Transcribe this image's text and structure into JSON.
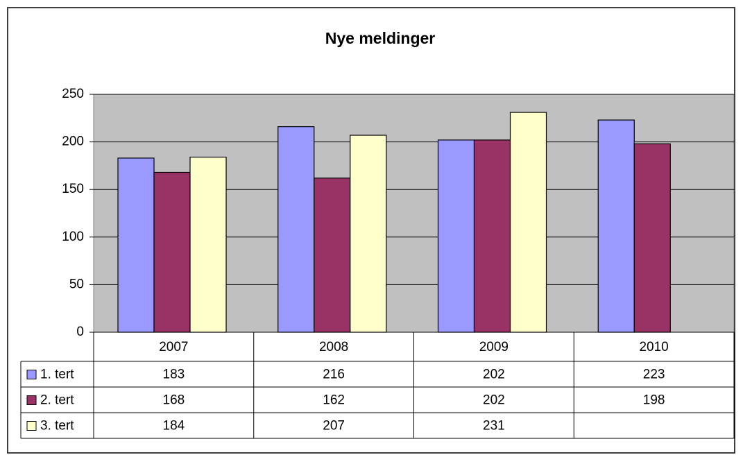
{
  "chart_data": {
    "type": "bar",
    "title": "Nye meldinger",
    "categories": [
      "2007",
      "2008",
      "2009",
      "2010"
    ],
    "series": [
      {
        "name": "1. tert",
        "color": "#9999ff",
        "values": [
          183,
          216,
          202,
          223
        ]
      },
      {
        "name": "2. tert",
        "color": "#993366",
        "values": [
          168,
          162,
          202,
          198
        ]
      },
      {
        "name": "3. tert",
        "color": "#ffffcc",
        "values": [
          184,
          207,
          231,
          null
        ]
      }
    ],
    "ylim": [
      0,
      250
    ],
    "yticks": [
      0,
      50,
      100,
      150,
      200,
      250
    ],
    "grid": true,
    "plot_background": "#c0c0c0"
  }
}
